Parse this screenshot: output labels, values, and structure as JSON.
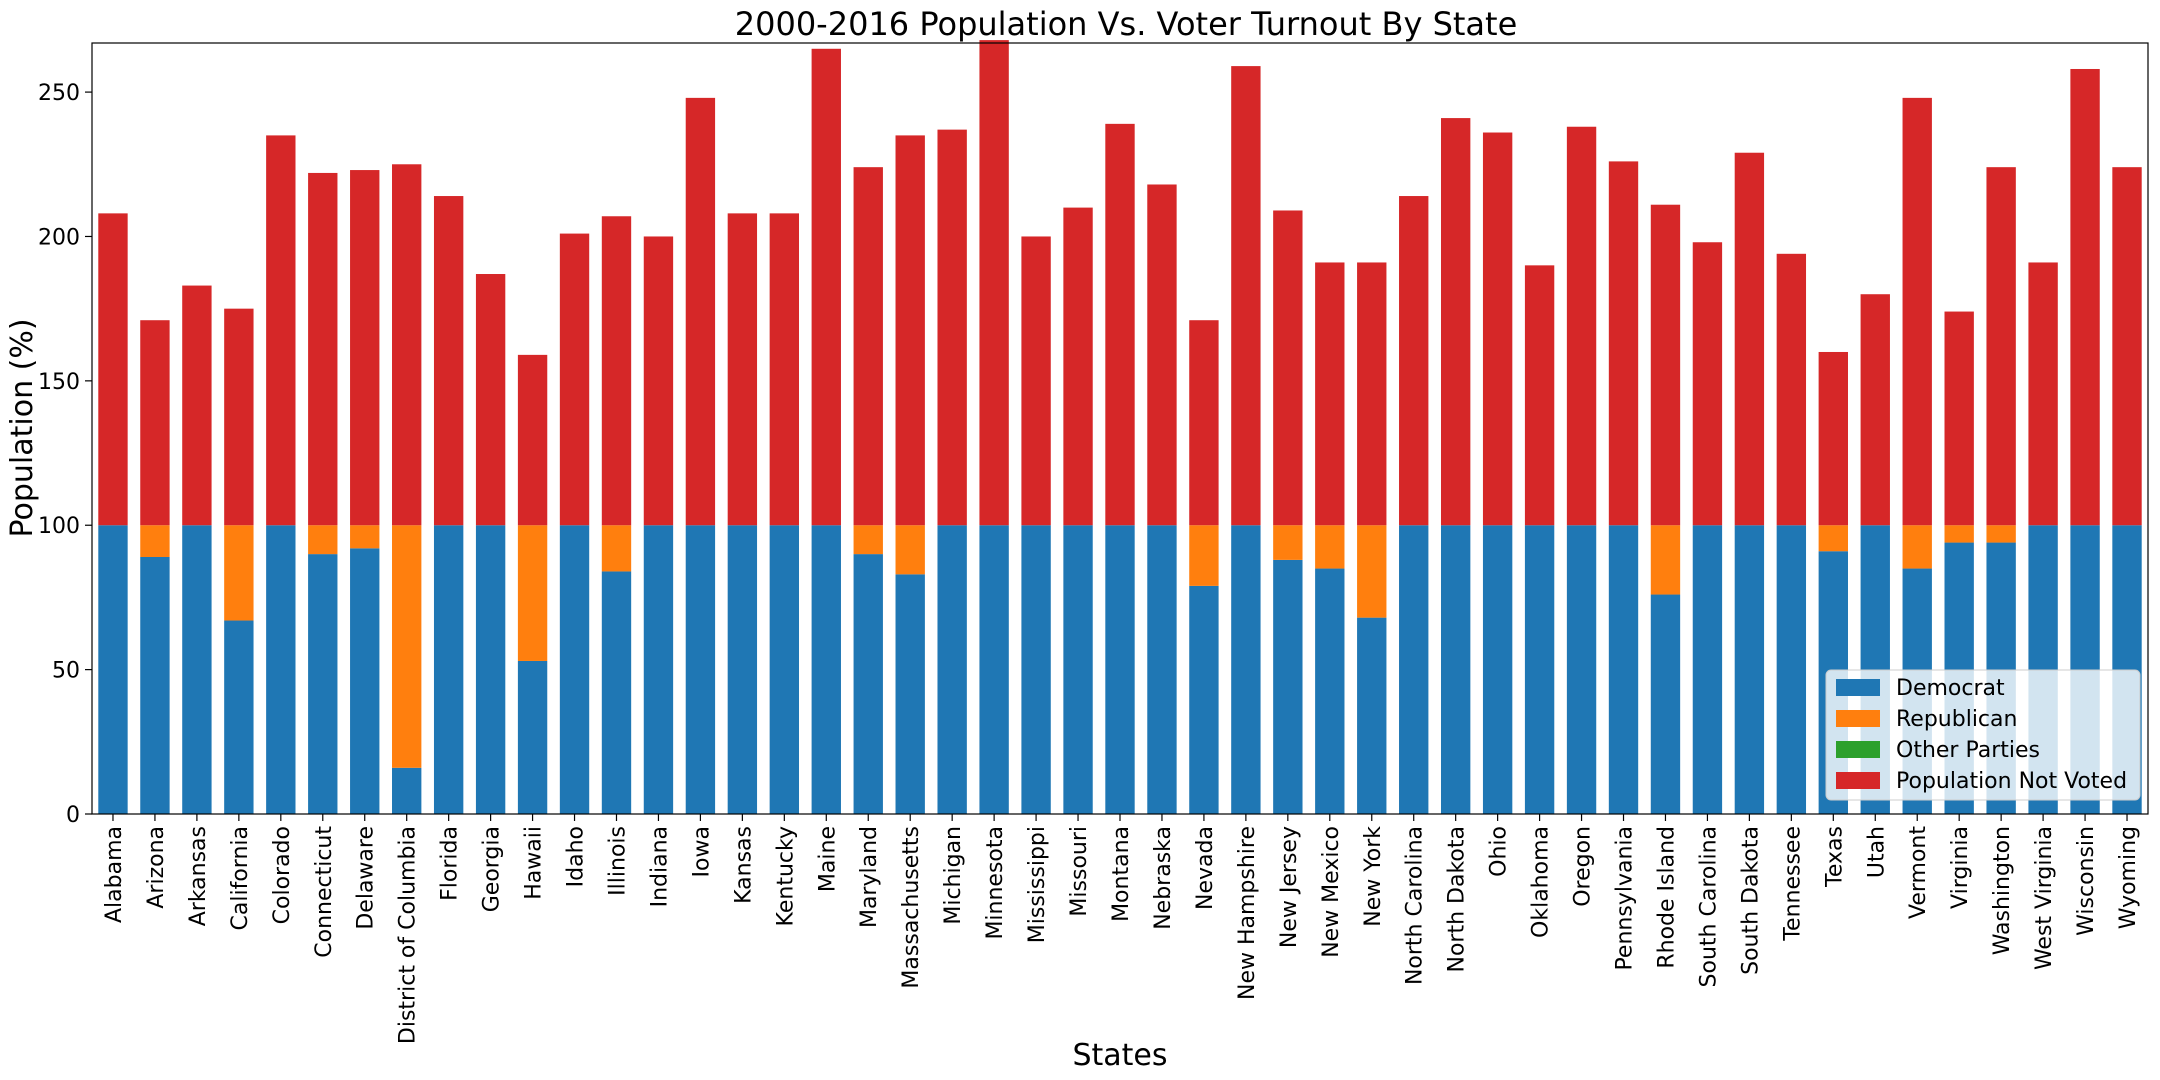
{
  "chart_data": {
    "type": "bar",
    "stacked": true,
    "title": "2000-2016 Population Vs. Voter Turnout By State",
    "xlabel": "States",
    "ylabel": "Population (%)",
    "ylim": [
      0,
      267
    ],
    "yticks": [
      0,
      50,
      100,
      150,
      200,
      250
    ],
    "grid": false,
    "legend_position": "lower-right",
    "categories": [
      "Alabama",
      "Arizona",
      "Arkansas",
      "California",
      "Colorado",
      "Connecticut",
      "Delaware",
      "District of Columbia",
      "Florida",
      "Georgia",
      "Hawaii",
      "Idaho",
      "Illinois",
      "Indiana",
      "Iowa",
      "Kansas",
      "Kentucky",
      "Maine",
      "Maryland",
      "Massachusetts",
      "Michigan",
      "Minnesota",
      "Mississippi",
      "Missouri",
      "Montana",
      "Nebraska",
      "Nevada",
      "New Hampshire",
      "New Jersey",
      "New Mexico",
      "New York",
      "North Carolina",
      "North Dakota",
      "Ohio",
      "Oklahoma",
      "Oregon",
      "Pennsylvania",
      "Rhode Island",
      "South Carolina",
      "South Dakota",
      "Tennessee",
      "Texas",
      "Utah",
      "Vermont",
      "Virginia",
      "Washington",
      "West Virginia",
      "Wisconsin",
      "Wyoming"
    ],
    "series": [
      {
        "name": "Democrat",
        "color": "#1f77b4",
        "values": [
          100,
          89,
          100,
          67,
          100,
          90,
          92,
          16,
          100,
          100,
          53,
          100,
          84,
          100,
          100,
          100,
          100,
          100,
          90,
          83,
          100,
          100,
          100,
          100,
          100,
          100,
          79,
          100,
          88,
          85,
          68,
          100,
          100,
          100,
          100,
          100,
          100,
          76,
          100,
          100,
          100,
          91,
          100,
          85,
          94,
          94,
          100,
          100,
          100
        ]
      },
      {
        "name": "Republican",
        "color": "#ff7f0e",
        "values": [
          0,
          11,
          0,
          33,
          0,
          10,
          8,
          84,
          0,
          0,
          47,
          0,
          16,
          0,
          0,
          0,
          0,
          0,
          10,
          17,
          0,
          0,
          0,
          0,
          0,
          0,
          21,
          0,
          12,
          15,
          32,
          0,
          0,
          0,
          0,
          0,
          0,
          24,
          0,
          0,
          0,
          9,
          0,
          15,
          6,
          6,
          0,
          0,
          0
        ]
      },
      {
        "name": "Other Parties",
        "color": "#2ca02c",
        "values": [
          0,
          0,
          0,
          0,
          0,
          0,
          0,
          0,
          0,
          0,
          0,
          0,
          0,
          0,
          0,
          0,
          0,
          0,
          0,
          0,
          0,
          0,
          0,
          0,
          0,
          0,
          0,
          0,
          0,
          0,
          0,
          0,
          0,
          0,
          0,
          0,
          0,
          0,
          0,
          0,
          0,
          0,
          0,
          0,
          0,
          0,
          0,
          0,
          0
        ]
      },
      {
        "name": "Population Not Voted",
        "color": "#d62728",
        "values": [
          108,
          71,
          83,
          75,
          135,
          122,
          123,
          125,
          114,
          87,
          59,
          101,
          107,
          100,
          148,
          108,
          108,
          165,
          124,
          135,
          137,
          168,
          100,
          110,
          139,
          118,
          71,
          159,
          109,
          91,
          91,
          114,
          141,
          136,
          90,
          138,
          126,
          111,
          98,
          129,
          94,
          60,
          80,
          148,
          74,
          124,
          91,
          158,
          124
        ]
      }
    ]
  }
}
